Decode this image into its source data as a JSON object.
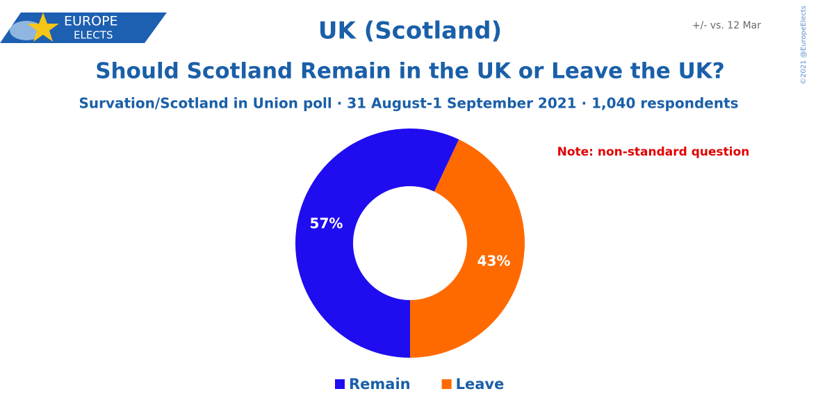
{
  "logo": {
    "line1": "EUROPE",
    "line2": "ELECTS"
  },
  "chart_data": {
    "type": "pie",
    "title": "UK (Scotland)",
    "subtitle": "Should Scotland Remain in the UK or Leave the UK?",
    "caption": "Survation/Scotland in Union poll · 31 August-1 September 2021 · 1,040 respondents",
    "comparison": "+/- vs. 12 Mar",
    "note": "Note: non-standard question",
    "credit": "©2021 @EuropeElects",
    "categories": [
      "Remain",
      "Leave"
    ],
    "values": [
      57,
      43
    ],
    "value_labels": [
      "57%",
      "43%"
    ],
    "colors": [
      "#1f0df0",
      "#ff6a00"
    ],
    "donut": true,
    "legend": "bottom"
  }
}
